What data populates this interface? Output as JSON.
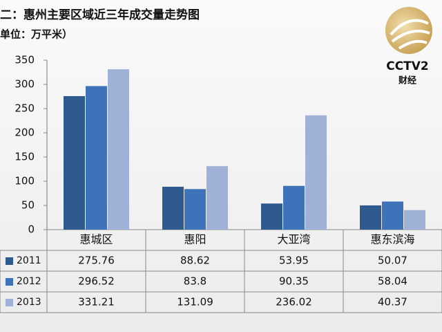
{
  "chart_data": {
    "type": "bar",
    "title": "二：惠州主要区域近三年成交量走势图",
    "subtitle": "单位：万平米）",
    "categories": [
      "惠城区",
      "惠阳",
      "大亚湾",
      "惠东滨海"
    ],
    "series": [
      {
        "name": "2011",
        "color": "#2e5a8e",
        "values": [
          275.76,
          88.62,
          53.95,
          50.07
        ]
      },
      {
        "name": "2012",
        "color": "#3f73b9",
        "values": [
          296.52,
          83.8,
          90.35,
          58.04
        ]
      },
      {
        "name": "2013",
        "color": "#9fb1d6",
        "values": [
          331.21,
          131.09,
          236.02,
          40.37
        ]
      }
    ],
    "ylim": [
      0,
      350
    ],
    "yticks": [
      0,
      50,
      100,
      150,
      200,
      250,
      300,
      350
    ],
    "grid": false,
    "logo": {
      "brand": "CCTV2",
      "channel": "财经"
    }
  }
}
